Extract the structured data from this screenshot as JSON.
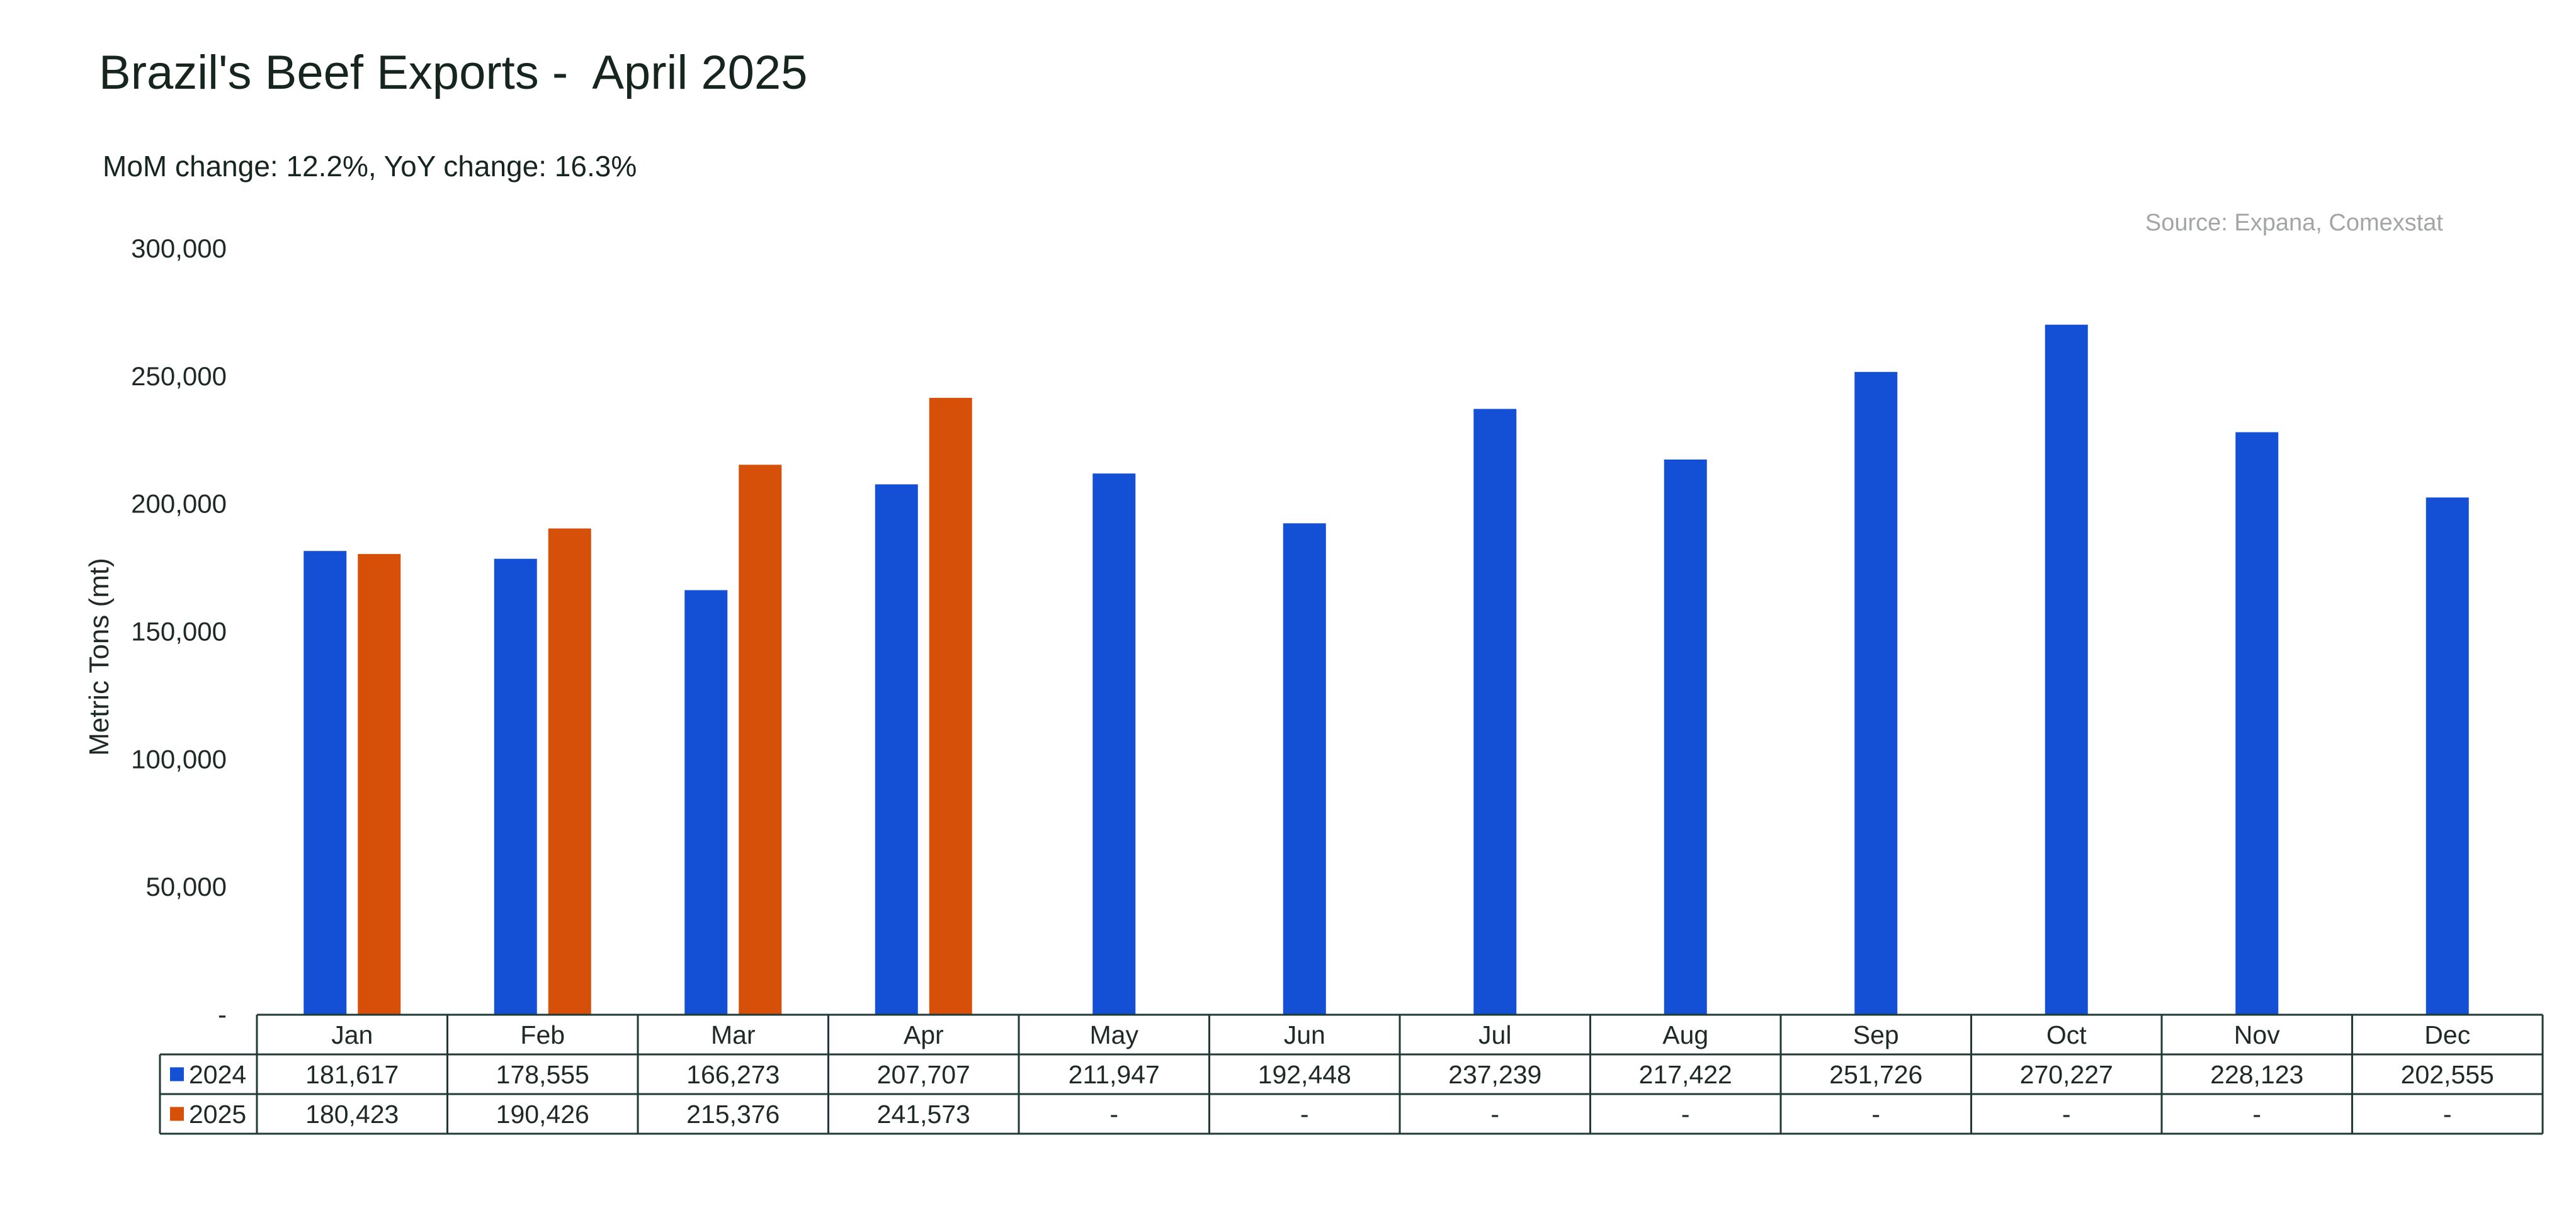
{
  "header": {
    "title": "Brazil's Beef Exports -  April 2025",
    "subtitle": "MoM change: 12.2%, YoY change: 16.3%",
    "source": "Source: Expana, Comexstat"
  },
  "colors": {
    "series_2024": "#1450d6",
    "series_2025": "#d6500a",
    "text": "#1f2a26",
    "grid_border": "#1f3a34"
  },
  "chart_data": {
    "type": "bar",
    "title": "Brazil's Beef Exports -  April 2025",
    "subtitle": "MoM change: 12.2%, YoY change: 16.3%",
    "xlabel": "",
    "ylabel": "Metric Tons (mt)",
    "ylim": [
      0,
      300000
    ],
    "ytick_values": [
      0,
      50000,
      100000,
      150000,
      200000,
      250000,
      300000
    ],
    "ytick_labels": [
      "-",
      "50,000",
      "100,000",
      "150,000",
      "200,000",
      "250,000",
      "300,000"
    ],
    "categories": [
      "Jan",
      "Feb",
      "Mar",
      "Apr",
      "May",
      "Jun",
      "Jul",
      "Aug",
      "Sep",
      "Oct",
      "Nov",
      "Dec"
    ],
    "grid": false,
    "legend": "data table",
    "series": [
      {
        "name": "2024",
        "color": "#1450d6",
        "values": [
          181617,
          178555,
          166273,
          207707,
          211947,
          192448,
          237239,
          217422,
          251726,
          270227,
          228123,
          202555
        ],
        "labels": [
          "181,617",
          "178,555",
          "166,273",
          "207,707",
          "211,947",
          "192,448",
          "237,239",
          "217,422",
          "251,726",
          "270,227",
          "228,123",
          "202,555"
        ]
      },
      {
        "name": "2025",
        "color": "#d6500a",
        "values": [
          180423,
          190426,
          215376,
          241573,
          null,
          null,
          null,
          null,
          null,
          null,
          null,
          null
        ],
        "labels": [
          "180,423",
          "190,426",
          "215,376",
          "241,573",
          "-",
          "-",
          "-",
          "-",
          "-",
          "-",
          "-",
          "-"
        ]
      }
    ]
  }
}
